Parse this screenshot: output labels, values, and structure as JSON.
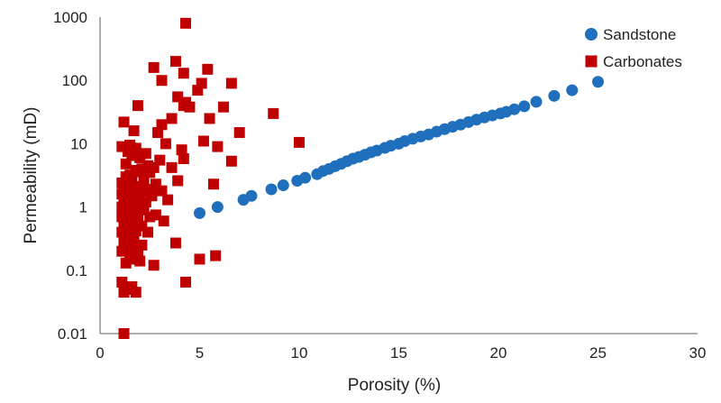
{
  "chart_data": {
    "type": "scatter",
    "xlabel": "Porosity (%)",
    "ylabel": "Permeability (mD)",
    "xlim": [
      0,
      30
    ],
    "ylim": [
      0.01,
      1000
    ],
    "y_scale": "log",
    "grid": false,
    "legend_position": "top-right",
    "x_ticks": [
      "0",
      "5",
      "10",
      "15",
      "20",
      "25",
      "30"
    ],
    "y_ticks": [
      "0.01",
      "0.1",
      "1",
      "10",
      "100",
      "1000"
    ],
    "series": [
      {
        "name": "Sandstone",
        "marker": "circle",
        "color": "#1f6fbd",
        "x": [
          5.0,
          5.9,
          7.2,
          7.6,
          8.6,
          9.2,
          9.9,
          10.3,
          10.9,
          11.2,
          11.5,
          11.8,
          12.1,
          12.4,
          12.7,
          13.0,
          13.3,
          13.6,
          13.9,
          14.3,
          14.6,
          15.0,
          15.3,
          15.7,
          16.1,
          16.5,
          16.9,
          17.3,
          17.7,
          18.1,
          18.5,
          18.9,
          19.3,
          19.7,
          20.1,
          20.4,
          20.8,
          21.3,
          21.9,
          22.8,
          23.7,
          25.0
        ],
        "y": [
          0.8,
          1.0,
          1.3,
          1.5,
          1.9,
          2.2,
          2.6,
          2.9,
          3.3,
          3.7,
          4.0,
          4.4,
          4.8,
          5.3,
          5.8,
          6.2,
          6.7,
          7.3,
          7.8,
          8.6,
          9.3,
          10.0,
          11.0,
          12.0,
          13.0,
          14.0,
          15.5,
          17.0,
          18.5,
          20.0,
          22.0,
          24.0,
          26.0,
          28.0,
          30.0,
          32.0,
          35.0,
          39.0,
          46.0,
          57.0,
          70.0,
          95.0
        ]
      },
      {
        "name": "Carbonates",
        "marker": "square",
        "color": "#c00000",
        "x": [
          4.3,
          3.8,
          2.7,
          4.2,
          5.4,
          3.1,
          4.9,
          5.1,
          6.6,
          3.9,
          4.3,
          4.2,
          4.5,
          1.9,
          5.5,
          6.2,
          8.7,
          3.1,
          3.6,
          2.9,
          1.2,
          7.0,
          1.7,
          5.2,
          4.1,
          3.3,
          5.9,
          1.5,
          10.0,
          1.8,
          1.1,
          1.4,
          2.3,
          2.0,
          1.6,
          3.0,
          4.2,
          6.6,
          2.4,
          1.3,
          2.1,
          2.7,
          1.8,
          3.6,
          1.9,
          2.5,
          1.5,
          1.3,
          3.9,
          2.2,
          5.7,
          1.1,
          1.6,
          1.4,
          2.8,
          2.2,
          1.8,
          1.2,
          2.6,
          3.1,
          1.7,
          2.0,
          1.4,
          2.4,
          1.9,
          1.1,
          2.6,
          1.5,
          1.3,
          2.1,
          3.4,
          1.6,
          1.2,
          1.8,
          2.3,
          1.4,
          1.9,
          1.1,
          1.5,
          2.0,
          1.7,
          1.3,
          2.2,
          1.6,
          1.2,
          1.8,
          2.8,
          1.4,
          1.1,
          2.5,
          1.9,
          1.5,
          1.3,
          3.2,
          1.7,
          2.1,
          1.2,
          1.6,
          1.4,
          1.8,
          1.1,
          1.5,
          2.4,
          1.3,
          3.8,
          1.7,
          1.2,
          1.6,
          2.1,
          1.4,
          5.8,
          1.9,
          1.1,
          5.0,
          2.7,
          1.5,
          1.3,
          2.0,
          1.1,
          4.3,
          1.6,
          1.4,
          1.2,
          1.8,
          1.2
        ],
        "y": [
          800,
          200,
          160,
          130,
          150,
          100,
          70,
          90,
          90,
          55,
          45,
          40,
          38,
          40,
          25,
          38,
          30,
          20,
          25,
          15,
          22,
          15,
          16,
          11,
          8,
          10,
          9,
          9.5,
          10.5,
          8.5,
          9,
          7.5,
          7,
          6,
          6.5,
          5.5,
          5.8,
          5.3,
          4.5,
          4.8,
          4.0,
          4.2,
          3.8,
          4.2,
          3.6,
          3.5,
          3.2,
          3.0,
          2.6,
          2.8,
          2.3,
          2.4,
          2.5,
          2.2,
          2.3,
          2.0,
          2.1,
          2.0,
          1.9,
          1.8,
          1.8,
          1.7,
          1.7,
          1.6,
          1.6,
          1.6,
          1.5,
          1.5,
          1.4,
          1.4,
          1.3,
          1.3,
          1.2,
          1.2,
          1.2,
          1.1,
          1.1,
          1.0,
          1.0,
          1.0,
          0.95,
          0.9,
          0.9,
          0.85,
          0.8,
          0.8,
          0.75,
          0.75,
          0.7,
          0.7,
          0.65,
          0.62,
          0.6,
          0.6,
          0.55,
          0.5,
          0.5,
          0.48,
          0.45,
          0.42,
          0.4,
          0.38,
          0.4,
          0.35,
          0.27,
          0.3,
          0.28,
          0.25,
          0.25,
          0.22,
          0.17,
          0.2,
          0.2,
          0.15,
          0.12,
          0.15,
          0.13,
          0.14,
          0.065,
          0.065,
          0.055,
          0.05,
          0.045,
          0.045,
          0.01
        ]
      }
    ]
  }
}
